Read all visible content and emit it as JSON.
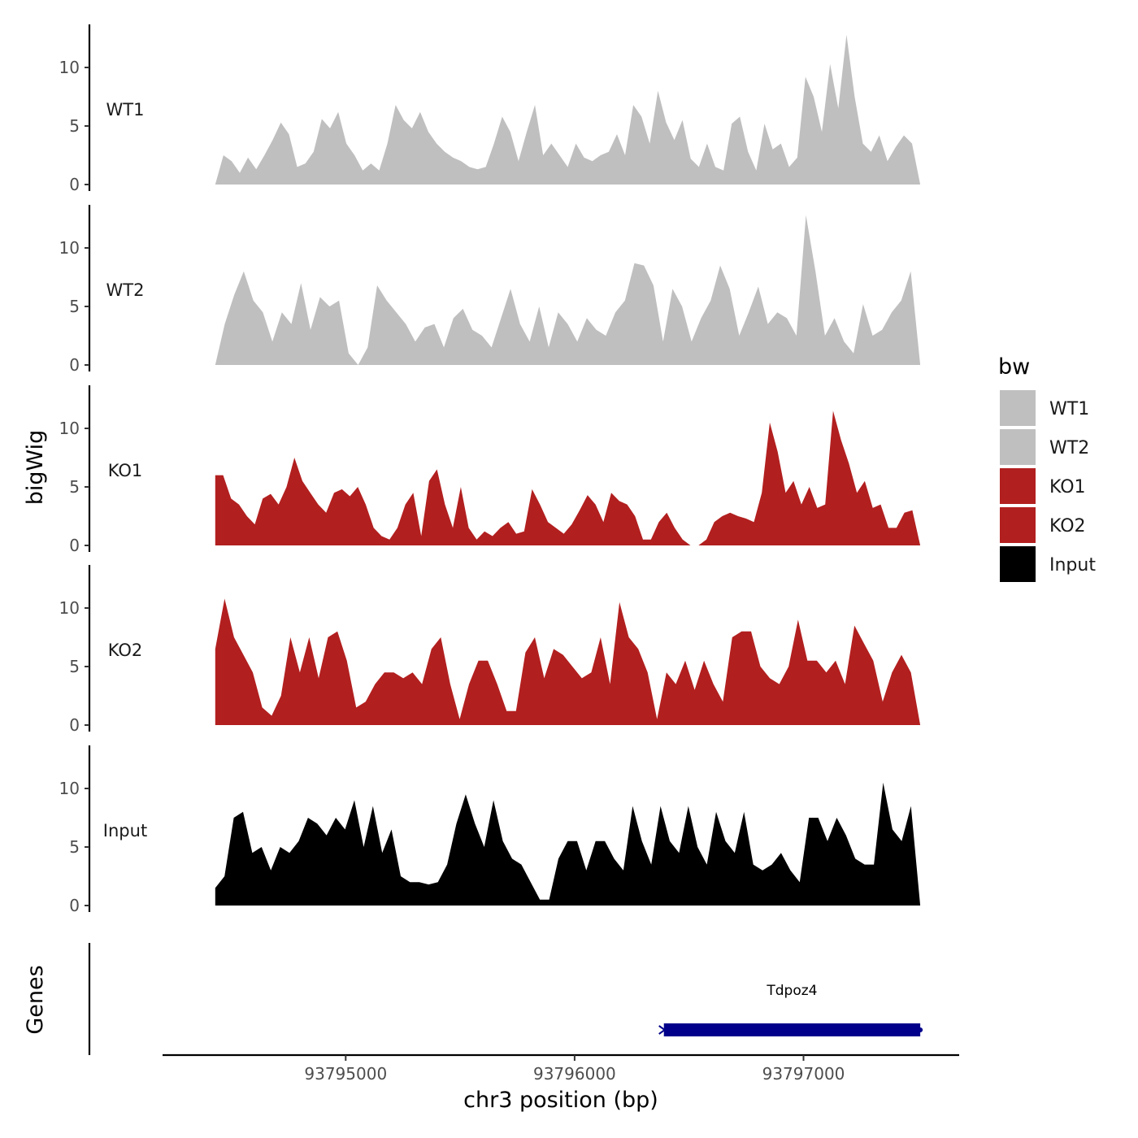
{
  "chart_data": {
    "type": "area",
    "xlabel": "chr3 position (bp)",
    "ylabel": "bigWig",
    "genes_label": "Genes",
    "xlim": [
      93794200,
      93797680
    ],
    "ylim": [
      0,
      13.5
    ],
    "x_ticks": [
      {
        "value": 93795000,
        "label": "93795000"
      },
      {
        "value": 93796000,
        "label": "93796000"
      },
      {
        "value": 93797000,
        "label": "93797000"
      }
    ],
    "y_ticks": [
      {
        "value": 0,
        "label": "0"
      },
      {
        "value": 5,
        "label": "5"
      },
      {
        "value": 10,
        "label": "10"
      }
    ],
    "x_range": [
      93794430,
      93797510
    ],
    "legend": {
      "title": "bw",
      "items": [
        {
          "label": "WT1",
          "color": "#bfbfbf"
        },
        {
          "label": "WT2",
          "color": "#bfbfbf"
        },
        {
          "label": "KO1",
          "color": "#b21f1f"
        },
        {
          "label": "KO2",
          "color": "#b21f1f"
        },
        {
          "label": "Input",
          "color": "#000000"
        }
      ]
    },
    "series": [
      {
        "name": "WT1",
        "color": "#bfbfbf",
        "values": [
          0,
          2.5,
          2,
          1,
          2.3,
          1.3,
          2.5,
          3.8,
          5.3,
          4.3,
          1.5,
          1.8,
          2.8,
          5.6,
          4.8,
          6.2,
          3.5,
          2.5,
          1.2,
          1.8,
          1.2,
          3.5,
          6.8,
          5.5,
          4.8,
          6.2,
          4.5,
          3.5,
          2.8,
          2.3,
          2,
          1.5,
          1.3,
          1.5,
          3.5,
          5.8,
          4.5,
          2,
          4.5,
          6.8,
          2.5,
          3.5,
          2.5,
          1.5,
          3.5,
          2.3,
          2,
          2.5,
          2.8,
          4.3,
          2.5,
          6.8,
          5.8,
          3.5,
          8,
          5.3,
          3.8,
          5.5,
          2.2,
          1.5,
          3.5,
          1.5,
          1.2,
          5.2,
          5.8,
          2.8,
          1.2,
          5.2,
          3,
          3.5,
          1.5,
          2.3,
          9.2,
          7.5,
          4.5,
          10.3,
          6.5,
          12.8,
          7.5,
          3.5,
          2.8,
          4.2,
          2,
          3.2,
          4.2,
          3.5,
          0
        ]
      },
      {
        "name": "WT2",
        "color": "#bfbfbf",
        "values": [
          0,
          3.5,
          6,
          8,
          5.5,
          4.5,
          2,
          4.5,
          3.5,
          7,
          3,
          5.8,
          5,
          5.5,
          1,
          0,
          1.5,
          6.8,
          5.5,
          4.5,
          3.5,
          2,
          3.2,
          3.5,
          1.5,
          4,
          4.8,
          3,
          2.5,
          1.5,
          4,
          6.5,
          3.5,
          2,
          5,
          1.5,
          4.5,
          3.5,
          2,
          4,
          3,
          2.5,
          4.5,
          5.5,
          8.7,
          8.5,
          6.8,
          2,
          6.5,
          5,
          2,
          4,
          5.5,
          8.5,
          6.5,
          2.5,
          4.5,
          6.7,
          3.5,
          4.5,
          4,
          2.5,
          12.8,
          8,
          2.5,
          4,
          2,
          1,
          5.2,
          2.5,
          3,
          4.5,
          5.5,
          8,
          0
        ]
      },
      {
        "name": "KO1",
        "color": "#b21f1f",
        "values": [
          6,
          6,
          4,
          3.5,
          2.5,
          1.8,
          4,
          4.4,
          3.5,
          5,
          7.5,
          5.5,
          4.5,
          3.5,
          2.8,
          4.5,
          4.8,
          4.2,
          5,
          3.5,
          1.5,
          0.8,
          0.5,
          1.5,
          3.5,
          4.5,
          0.8,
          5.5,
          6.5,
          3.5,
          1.5,
          5,
          1.5,
          0.5,
          1.2,
          0.8,
          1.5,
          2,
          1,
          1.2,
          4.8,
          3.5,
          2,
          1.5,
          1,
          1.8,
          3,
          4.3,
          3.5,
          2,
          4.5,
          3.8,
          3.5,
          2.5,
          0.5,
          0.5,
          2,
          2.8,
          1.5,
          0.5,
          0,
          0,
          0.5,
          2,
          2.5,
          2.8,
          2.5,
          2.3,
          2,
          4.5,
          10.5,
          8,
          4.5,
          5.5,
          3.5,
          5,
          3.2,
          3.5,
          11.5,
          9,
          7,
          4.5,
          5.5,
          3.2,
          3.5,
          1.5,
          1.5,
          2.8,
          3,
          0
        ]
      },
      {
        "name": "KO2",
        "color": "#b21f1f",
        "values": [
          6.5,
          10.8,
          7.5,
          6,
          4.5,
          1.5,
          0.8,
          2.5,
          7.5,
          4.5,
          7.5,
          4,
          7.5,
          8,
          5.5,
          1.5,
          2,
          3.5,
          4.5,
          4.5,
          4,
          4.5,
          3.5,
          6.5,
          7.5,
          3.5,
          0.5,
          3.5,
          5.5,
          5.5,
          3.5,
          1.2,
          1.2,
          6.2,
          7.5,
          4,
          6.5,
          6,
          5,
          4,
          4.5,
          7.5,
          3.5,
          10.5,
          7.5,
          6.5,
          4.5,
          0.5,
          4.5,
          3.5,
          5.5,
          3,
          5.5,
          3.5,
          2,
          7.5,
          8,
          8,
          5,
          4,
          3.5,
          5,
          9,
          5.5,
          5.5,
          4.5,
          5.5,
          3.5,
          8.5,
          7,
          5.5,
          2,
          4.5,
          6,
          4.5,
          0
        ]
      },
      {
        "name": "Input",
        "color": "#000000",
        "values": [
          1.5,
          2.5,
          7.5,
          8,
          4.5,
          5,
          3,
          5,
          4.5,
          5.5,
          7.5,
          7,
          6,
          7.5,
          6.5,
          9,
          5,
          8.5,
          4.5,
          6.5,
          2.5,
          2,
          2,
          1.8,
          2,
          3.5,
          7,
          9.5,
          7,
          5,
          9,
          5.5,
          4,
          3.5,
          2,
          0.5,
          0.5,
          4,
          5.5,
          5.5,
          3,
          5.5,
          5.5,
          4,
          3,
          8.5,
          5.5,
          3.5,
          8.5,
          5.5,
          4.5,
          8.5,
          5,
          3.5,
          8,
          5.5,
          4.5,
          8,
          3.5,
          3,
          3.5,
          4.5,
          3,
          2,
          7.5,
          7.5,
          5.5,
          7.5,
          6,
          4,
          3.5,
          3.5,
          10.5,
          6.5,
          5.5,
          8.5,
          0
        ]
      }
    ],
    "genes": [
      {
        "name": "Tdpoz4",
        "start": 93796390,
        "end": 93797510,
        "strand": "-",
        "color": "#00008b"
      }
    ]
  }
}
